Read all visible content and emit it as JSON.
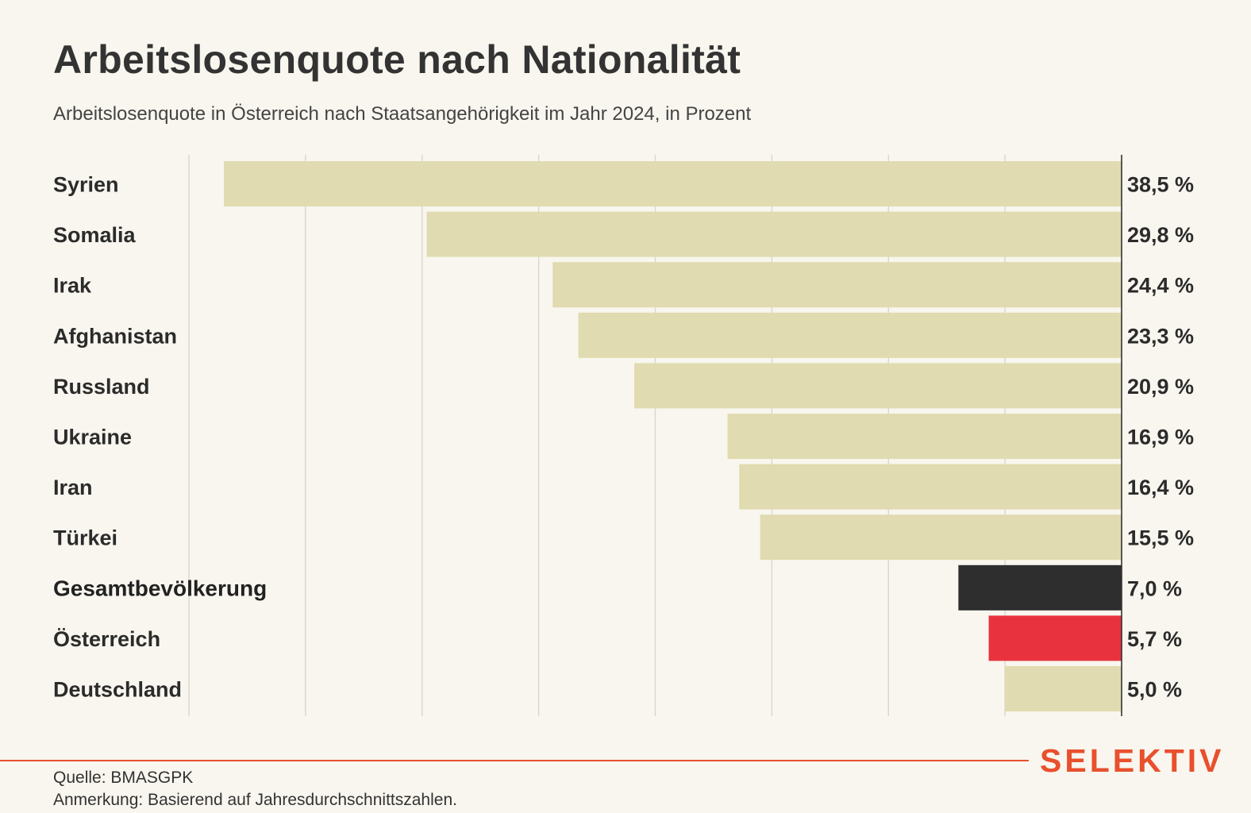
{
  "header": {
    "title": "Arbeitslosenquote nach Nationalität",
    "subtitle": "Arbeitslosenquote in Österreich nach Staatsangehörigkeit im Jahr 2024, in Prozent"
  },
  "chart_data": {
    "type": "bar",
    "orientation": "horizontal",
    "title": "Arbeitslosenquote nach Nationalität",
    "subtitle": "Arbeitslosenquote in Österreich nach Staatsangehörigkeit im Jahr 2024, in Prozent",
    "categories": [
      "Syrien",
      "Somalia",
      "Irak",
      "Afghanistan",
      "Russland",
      "Ukraine",
      "Iran",
      "Türkei",
      "Gesamtbevölkerung",
      "Österreich",
      "Deutschland"
    ],
    "values": [
      38.5,
      29.8,
      24.4,
      23.3,
      20.9,
      16.9,
      16.4,
      15.5,
      7.0,
      5.7,
      5.0
    ],
    "value_labels": [
      "38,5 %",
      "29,8 %",
      "24,4 %",
      "23,3 %",
      "20,9 %",
      "16,9 %",
      "16,4 %",
      "15,5 %",
      "7,0 %",
      "5,7 %",
      "5,0 %"
    ],
    "bold_categories": [
      "Gesamtbevölkerung"
    ],
    "bar_colors": [
      "#e0dbb0",
      "#e0dbb0",
      "#e0dbb0",
      "#e0dbb0",
      "#e0dbb0",
      "#e0dbb0",
      "#e0dbb0",
      "#e0dbb0",
      "#2e2e2e",
      "#e8333f",
      "#e0dbb0"
    ],
    "xlim": [
      0,
      40
    ],
    "grid_step": 5,
    "grid": true,
    "bar_anchor": "right",
    "xlabel": "",
    "ylabel": ""
  },
  "footer": {
    "source": "Quelle: BMASGPK",
    "note": "Anmerkung: Basierend auf Jahresdurchschnittszahlen.",
    "brand": "SELEKTIV"
  },
  "colors": {
    "background": "#f8f6ee",
    "bar": "#e0dbb0",
    "accent": "#e8502d",
    "grid": "#d9d6cc"
  }
}
